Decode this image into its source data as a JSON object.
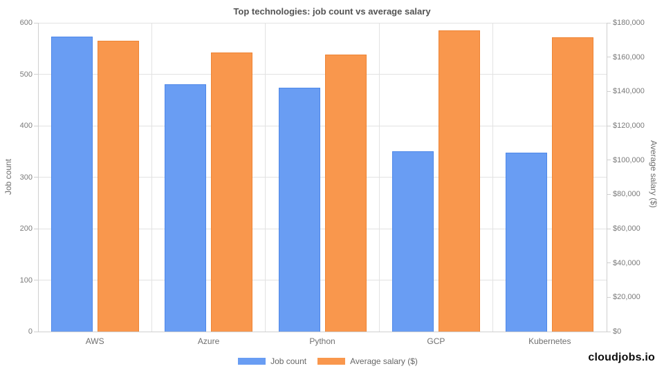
{
  "title": "Top technologies: job count vs average salary",
  "chart_data": {
    "type": "bar",
    "title": "Top technologies: job count vs average salary",
    "categories": [
      "AWS",
      "Azure",
      "Python",
      "GCP",
      "Kubernetes"
    ],
    "series": [
      {
        "name": "Job count",
        "axis": "left",
        "fill_color": "#699df3",
        "border_color": "#4d87e8",
        "values": [
          573,
          481,
          474,
          350,
          348
        ]
      },
      {
        "name": "Average salary ($)",
        "axis": "right",
        "fill_color": "#f9974d",
        "border_color": "#ee8434",
        "values": [
          169500,
          162500,
          161500,
          175500,
          171500
        ]
      }
    ],
    "left_axis": {
      "label": "Job count",
      "min": 0,
      "max": 600,
      "tick_labels": [
        "0",
        "100",
        "200",
        "300",
        "400",
        "500",
        "600"
      ]
    },
    "right_axis": {
      "label": "Average salary ($)",
      "min": 0,
      "max": 180000,
      "tick_labels": [
        "$0",
        "$20,000",
        "$40,000",
        "$60,000",
        "$80,000",
        "$100,000",
        "$120,000",
        "$140,000",
        "$160,000",
        "$180,000"
      ]
    },
    "legend": {
      "position": "bottom",
      "items": [
        "Job count",
        "Average salary ($)"
      ]
    },
    "grid": "horizontal gridlines for left axis, vertical category separators"
  },
  "branding": {
    "logo_text": "cloudjobs.io"
  },
  "colors": {
    "job_count_bar": "#699df3",
    "salary_bar": "#f9974d",
    "gridline": "#e2e2e2",
    "axis_text": "#7a7a7a",
    "title_text": "#535353"
  }
}
